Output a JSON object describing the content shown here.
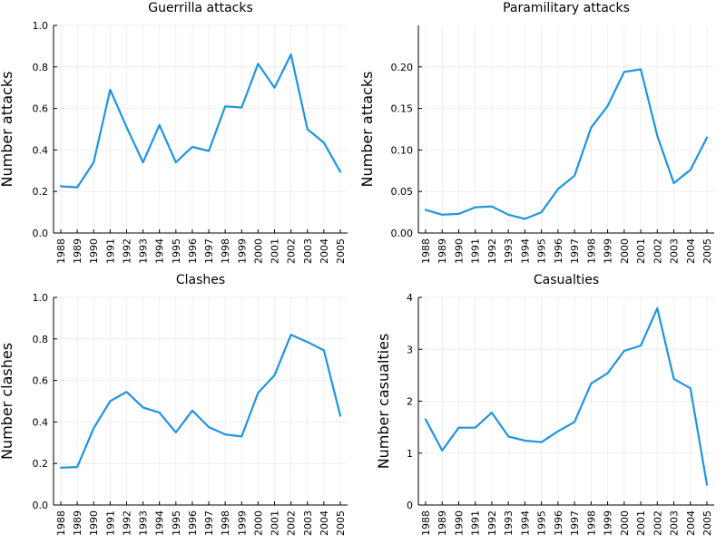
{
  "chart_data": [
    {
      "type": "line",
      "title": "Guerrilla attacks",
      "xlabel": "",
      "ylabel": "Number attacks",
      "x": [
        "1988",
        "1989",
        "1990",
        "1991",
        "1992",
        "1993",
        "1994",
        "1995",
        "1996",
        "1997",
        "1998",
        "1999",
        "2000",
        "2001",
        "2002",
        "2003",
        "2004",
        "2005"
      ],
      "ylim": [
        0,
        1.0
      ],
      "yticks": [
        "0.0",
        "0.2",
        "0.4",
        "0.6",
        "0.8",
        "1.0"
      ],
      "ytick_values": [
        0,
        0.2,
        0.4,
        0.6,
        0.8,
        1.0
      ],
      "grid": true,
      "legend": "none",
      "series": [
        {
          "color": "#1f94e0",
          "values": [
            0.225,
            0.22,
            0.34,
            0.69,
            0.51,
            0.34,
            0.52,
            0.34,
            0.415,
            0.395,
            0.61,
            0.605,
            0.815,
            0.7,
            0.86,
            0.5,
            0.435,
            0.295
          ]
        }
      ]
    },
    {
      "type": "line",
      "title": "Paramilitary attacks",
      "xlabel": "",
      "ylabel": "Number attacks",
      "x": [
        "1988",
        "1989",
        "1990",
        "1991",
        "1992",
        "1993",
        "1994",
        "1995",
        "1996",
        "1997",
        "1998",
        "1999",
        "2000",
        "2001",
        "2002",
        "2003",
        "2004",
        "2005"
      ],
      "ylim": [
        0,
        0.25
      ],
      "yticks": [
        "0.00",
        "0.05",
        "0.10",
        "0.15",
        "0.20"
      ],
      "ytick_values": [
        0,
        0.05,
        0.1,
        0.15,
        0.2
      ],
      "grid": true,
      "legend": "none",
      "series": [
        {
          "color": "#1f94e0",
          "values": [
            0.028,
            0.022,
            0.023,
            0.031,
            0.032,
            0.022,
            0.017,
            0.025,
            0.053,
            0.069,
            0.127,
            0.153,
            0.194,
            0.197,
            0.117,
            0.06,
            0.076,
            0.115
          ]
        }
      ]
    },
    {
      "type": "line",
      "title": "Clashes",
      "xlabel": "",
      "ylabel": "Number clashes",
      "x": [
        "1988",
        "1989",
        "1990",
        "1991",
        "1992",
        "1993",
        "1994",
        "1995",
        "1996",
        "1997",
        "1998",
        "1999",
        "2000",
        "2001",
        "2002",
        "2003",
        "2004",
        "2005"
      ],
      "ylim": [
        0,
        1.0
      ],
      "yticks": [
        "0.0",
        "0.2",
        "0.4",
        "0.6",
        "0.8",
        "1.0"
      ],
      "ytick_values": [
        0,
        0.2,
        0.4,
        0.6,
        0.8,
        1.0
      ],
      "grid": true,
      "legend": "none",
      "series": [
        {
          "color": "#1f94e0",
          "values": [
            0.18,
            0.183,
            0.37,
            0.5,
            0.545,
            0.47,
            0.445,
            0.35,
            0.455,
            0.375,
            0.34,
            0.33,
            0.54,
            0.625,
            0.82,
            0.785,
            0.745,
            0.43
          ]
        }
      ]
    },
    {
      "type": "line",
      "title": "Casualties",
      "xlabel": "",
      "ylabel": "Number casualties",
      "x": [
        "1988",
        "1989",
        "1990",
        "1991",
        "1992",
        "1993",
        "1994",
        "1995",
        "1996",
        "1997",
        "1998",
        "1999",
        "2000",
        "2001",
        "2002",
        "2003",
        "2004",
        "2005"
      ],
      "ylim": [
        0,
        4
      ],
      "yticks": [
        "0",
        "1",
        "2",
        "3",
        "4"
      ],
      "ytick_values": [
        0,
        1,
        2,
        3,
        4
      ],
      "grid": true,
      "legend": "none",
      "series": [
        {
          "color": "#1f94e0",
          "values": [
            1.65,
            1.05,
            1.49,
            1.49,
            1.78,
            1.32,
            1.24,
            1.21,
            1.42,
            1.6,
            2.34,
            2.54,
            2.97,
            3.07,
            3.79,
            2.43,
            2.25,
            0.39
          ]
        }
      ]
    }
  ]
}
